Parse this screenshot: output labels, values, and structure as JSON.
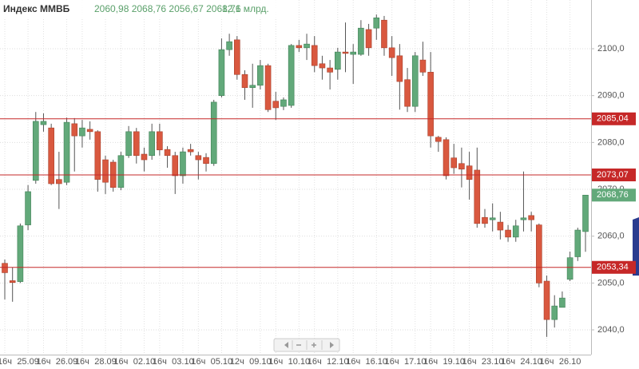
{
  "chart_data": {
    "type": "candlestick",
    "title": "Индекс ММВБ",
    "ohlc_text": "2060,98 2068,76 2056,67 2068,76",
    "volume_text": "12,1 млрд.",
    "categories": [
      "16ч",
      null,
      null,
      "25.09",
      null,
      "16ч",
      null,
      null,
      "26.09",
      null,
      "16ч",
      null,
      null,
      "28.09",
      null,
      "16ч",
      null,
      null,
      "02.10",
      null,
      "16ч",
      null,
      null,
      "03.10",
      null,
      "16ч",
      null,
      null,
      "05.10",
      null,
      "12ч",
      null,
      null,
      "09.10",
      null,
      "16ч",
      null,
      null,
      "10.10",
      null,
      "16ч",
      null,
      null,
      "12.10",
      null,
      "16ч",
      null,
      null,
      "16.10",
      null,
      "16ч",
      null,
      null,
      "17.10",
      null,
      "16ч",
      null,
      null,
      "19.10",
      null,
      "16ч",
      null,
      null,
      "23.10",
      null,
      "16ч",
      null,
      null,
      "24.10",
      null,
      "16ч",
      null,
      null,
      "26.10",
      null,
      null
    ],
    "open": [
      2054.2,
      2050.5,
      2050.3,
      2062.4,
      2071.9,
      2083.8,
      2083.1,
      2072.1,
      2071.5,
      2084,
      2081.4,
      2082.8,
      2082.3,
      2076.3,
      2075.8,
      2070.4,
      2077.2,
      2082.3,
      2077.5,
      2077.2,
      2082.3,
      2078.5,
      2077.2,
      2072.9,
      2078.5,
      2077.2,
      2076.8,
      2075.5,
      2090,
      2099.8,
      2101.9,
      2094.5,
      2091.7,
      2092.2,
      2096.4,
      2088.8,
      2087.7,
      2087.9,
      2100.7,
      2100.2,
      2100.7,
      2096.8,
      2095.9,
      2095.6,
      2099.3,
      2098.8,
      2098.8,
      2104.1,
      2104.4,
      2106.1,
      2100.2,
      2098.5,
      2093.4,
      2087.7,
      2097.6,
      2095,
      2081.1,
      2080.6,
      2076.7,
      2075.5,
      2075,
      2074.1,
      2064,
      2063.5,
      2063,
      2061.3,
      2059.8,
      2063.5,
      2064.4,
      2062.4,
      2050.4,
      2042.2,
      2044.8,
      2050.8,
      2055.6,
      2060.98
    ],
    "close": [
      2052.2,
      2050.1,
      2062.2,
      2069.5,
      2084.5,
      2084.5,
      2071.2,
      2071.2,
      2084.3,
      2081.4,
      2083.1,
      2082.3,
      2072.1,
      2071.5,
      2070.4,
      2077.2,
      2082.3,
      2077.2,
      2076.3,
      2082.3,
      2078.4,
      2077.2,
      2072.9,
      2078,
      2078,
      2076.3,
      2075.5,
      2088.6,
      2099.8,
      2101.5,
      2094.5,
      2091.7,
      2092.2,
      2096.4,
      2087,
      2087.4,
      2089.1,
      2100.7,
      2100.2,
      2101,
      2096.4,
      2095.9,
      2095,
      2099.3,
      2099,
      2099.3,
      2104.4,
      2100.2,
      2106.6,
      2100.2,
      2098.1,
      2093,
      2087.7,
      2098.5,
      2095,
      2081.4,
      2080.2,
      2072.9,
      2074.6,
      2074.3,
      2072.1,
      2062.7,
      2062.7,
      2063.9,
      2061.3,
      2059.8,
      2062.2,
      2063.9,
      2063.5,
      2050,
      2042.2,
      2045.1,
      2046.8,
      2055.4,
      2061.3,
      2068.76
    ],
    "high": [
      2055,
      2053.3,
      2062.7,
      2070.9,
      2086.5,
      2086.2,
      2084,
      2078,
      2085.3,
      2085.2,
      2084.8,
      2084.5,
      2082.6,
      2077.2,
      2076.3,
      2078,
      2083.5,
      2083.1,
      2078.9,
      2084,
      2084,
      2079.2,
      2078,
      2078.9,
      2079.7,
      2078,
      2077.7,
      2089.1,
      2102.2,
      2103.2,
      2102.7,
      2095.4,
      2096.8,
      2097.6,
      2096.8,
      2090.8,
      2089.6,
      2101,
      2101.9,
      2103.2,
      2102.7,
      2098.5,
      2097.6,
      2100.2,
      2105.6,
      2101,
      2106.1,
      2105.3,
      2107.3,
      2107,
      2102.7,
      2101,
      2095.9,
      2099.3,
      2101.5,
      2099.3,
      2081.4,
      2081.1,
      2079.7,
      2078.9,
      2078,
      2078.9,
      2065.8,
      2067,
      2065.2,
      2062.4,
      2063.5,
      2073.8,
      2065.2,
      2062.7,
      2051.6,
      2047.4,
      2048.2,
      2056.7,
      2061.8,
      2068.76
    ],
    "low": [
      2046.5,
      2046,
      2050,
      2061.3,
      2071.2,
      2082.3,
      2070.9,
      2065.8,
      2070.9,
      2073.8,
      2078.9,
      2080.6,
      2069.5,
      2069,
      2069.5,
      2069.8,
      2076.7,
      2075.5,
      2073.8,
      2076.3,
      2077.2,
      2074.6,
      2069,
      2071.2,
      2077.2,
      2072.1,
      2073.8,
      2075,
      2089.6,
      2098.5,
      2093.4,
      2089.1,
      2087.4,
      2091.3,
      2086.5,
      2084.8,
      2086.9,
      2087.4,
      2099.3,
      2097.6,
      2095,
      2093.4,
      2091.3,
      2093.4,
      2095,
      2092.5,
      2098.5,
      2098.5,
      2101.9,
      2098.5,
      2094.2,
      2087,
      2086.5,
      2086.5,
      2094.2,
      2078.9,
      2078,
      2072.1,
      2073.3,
      2070.4,
      2067.8,
      2061.8,
      2061.8,
      2061,
      2059.3,
      2058.8,
      2058.8,
      2061,
      2061,
      2049.1,
      2038.5,
      2040.5,
      2044.8,
      2050.4,
      2054.7,
      2056.67
    ],
    "up_color": "#62a97a",
    "down_color": "#d9583f",
    "ylim": [
      2035.4,
      2110.4
    ],
    "yticks": [
      {
        "value": 2040,
        "label": "2040,0"
      },
      {
        "value": 2050,
        "label": "2050,0"
      },
      {
        "value": 2060,
        "label": "2060,0"
      },
      {
        "value": 2070,
        "label": "2070,0"
      },
      {
        "value": 2080,
        "label": "2080,0"
      },
      {
        "value": 2090,
        "label": "2090,0"
      },
      {
        "value": 2100,
        "label": "2100,0"
      }
    ],
    "levels": [
      {
        "value": 2085.04,
        "label": "2085,04"
      },
      {
        "value": 2073.07,
        "label": "2073,07"
      },
      {
        "value": 2053.34,
        "label": "2053,34"
      }
    ],
    "level_color": "#c62828",
    "last_price": {
      "value": 2068.76,
      "label": "2068,76"
    },
    "grid": true
  }
}
